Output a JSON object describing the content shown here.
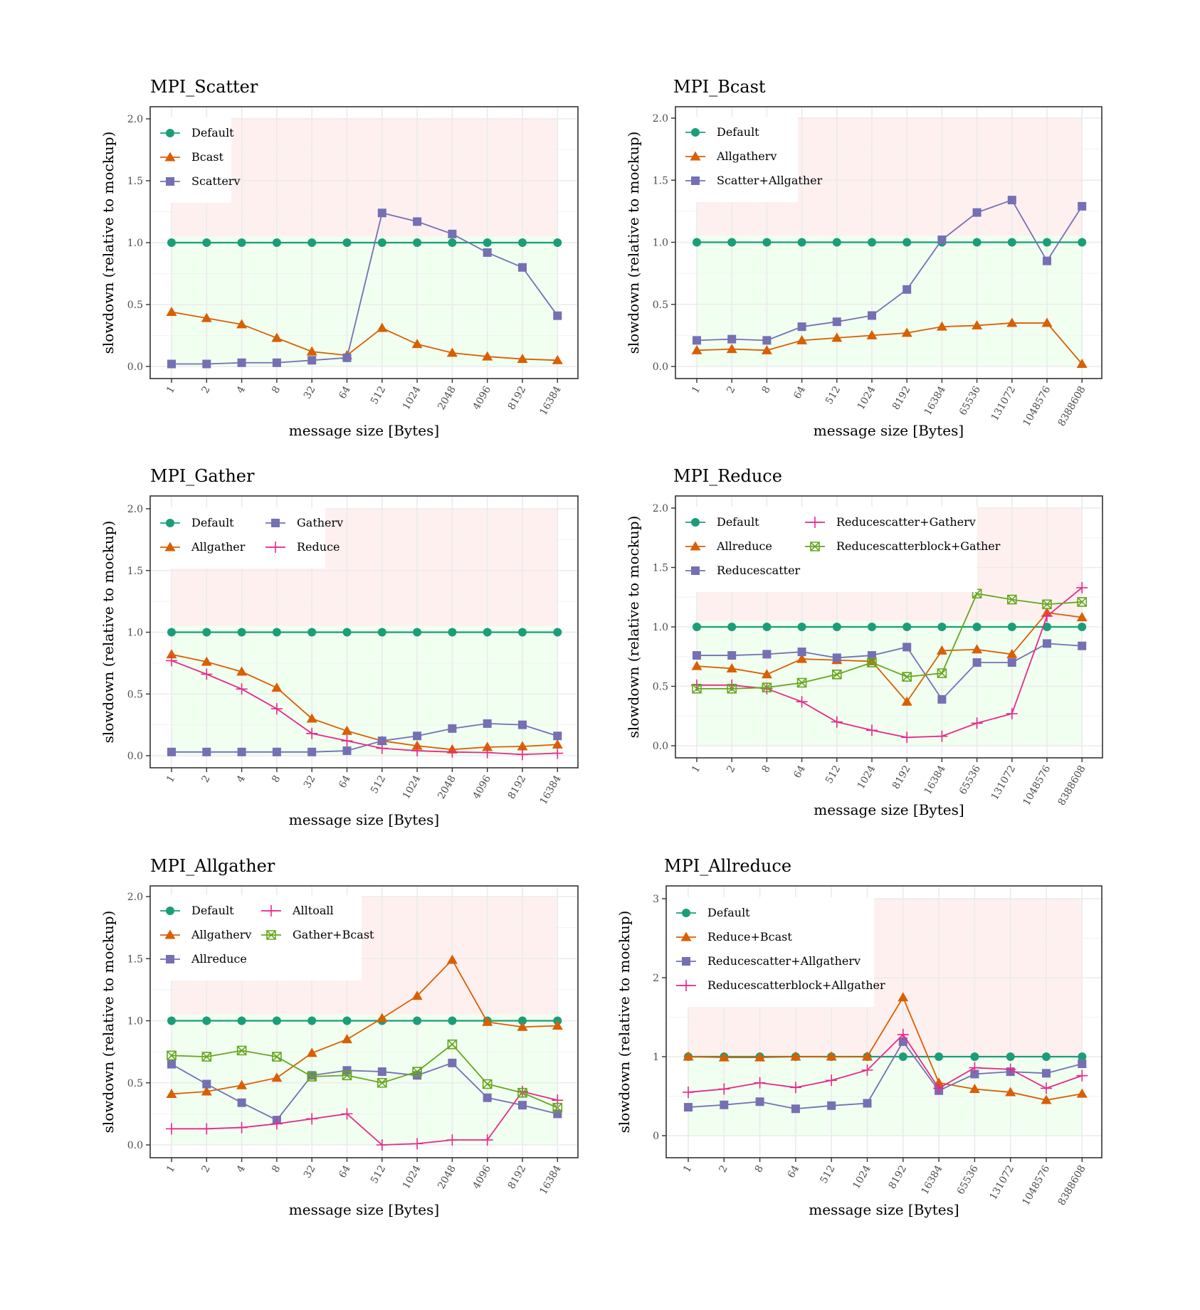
{
  "figure": {
    "background": "#ffffff",
    "region_colors": {
      "faster": "#f0fff0",
      "slower": "#fff0f0"
    },
    "series_colors": {
      "Default": "#1b9e77",
      "orange": "#d95f02",
      "purple": "#7570b3",
      "pink": "#e7298a",
      "green": "#66a61e"
    }
  },
  "chart_data": [
    {
      "id": "scatter",
      "type": "line",
      "title": "MPI_Scatter",
      "xlabel": "message size [Bytes]",
      "ylabel": "slowdown (relative to mockup)",
      "categories": [
        "1",
        "2",
        "4",
        "8",
        "32",
        "64",
        "512",
        "1024",
        "2048",
        "4096",
        "8192",
        "16384"
      ],
      "ylim": [
        0,
        2.0
      ],
      "yticks": [
        "0.0",
        "0.5",
        "1.0",
        "1.5",
        "2.0"
      ],
      "ytick_values": [
        0,
        0.5,
        1.0,
        1.5,
        2.0
      ],
      "grid": true,
      "shaded_regions": {
        "faster_below": 1.05,
        "slower_above": 1.05
      },
      "legend": {
        "position": "top-left",
        "columns": 1
      },
      "series": [
        {
          "name": "Default",
          "color": "#1b9e77",
          "marker": "circle",
          "values": [
            1,
            1,
            1,
            1,
            1,
            1,
            1,
            1,
            1,
            1,
            1,
            1
          ]
        },
        {
          "name": "Bcast",
          "color": "#d95f02",
          "marker": "triangle",
          "values": [
            0.44,
            0.39,
            0.34,
            0.23,
            0.12,
            0.09,
            0.31,
            0.18,
            0.11,
            0.08,
            0.06,
            0.05
          ]
        },
        {
          "name": "Scatterv",
          "color": "#7570b3",
          "marker": "square",
          "values": [
            0.02,
            0.02,
            0.03,
            0.03,
            0.05,
            0.07,
            1.24,
            1.17,
            1.07,
            0.92,
            0.8,
            0.41
          ]
        }
      ]
    },
    {
      "id": "bcast",
      "type": "line",
      "title": "MPI_Bcast",
      "xlabel": "message size [Bytes]",
      "ylabel": "slowdown (relative to mockup)",
      "categories": [
        "1",
        "2",
        "8",
        "64",
        "512",
        "1024",
        "8192",
        "16384",
        "65536",
        "131072",
        "1048576",
        "8388608"
      ],
      "ylim": [
        0,
        2.0
      ],
      "yticks": [
        "0.0",
        "0.5",
        "1.0",
        "1.5",
        "2.0"
      ],
      "ytick_values": [
        0,
        0.5,
        1.0,
        1.5,
        2.0
      ],
      "grid": true,
      "shaded_regions": {
        "faster_below": 1.05,
        "slower_above": 1.05
      },
      "legend": {
        "position": "top-left",
        "columns": 1
      },
      "series": [
        {
          "name": "Default",
          "color": "#1b9e77",
          "marker": "circle",
          "values": [
            1,
            1,
            1,
            1,
            1,
            1,
            1,
            1,
            1,
            1,
            1,
            1
          ]
        },
        {
          "name": "Allgatherv",
          "color": "#d95f02",
          "marker": "triangle",
          "values": [
            0.13,
            0.14,
            0.13,
            0.21,
            0.23,
            0.25,
            0.27,
            0.32,
            0.33,
            0.35,
            0.35,
            0.02
          ]
        },
        {
          "name": "Scatter+Allgather",
          "color": "#7570b3",
          "marker": "square",
          "values": [
            0.21,
            0.22,
            0.21,
            0.32,
            0.36,
            0.41,
            0.62,
            1.02,
            1.24,
            1.34,
            0.85,
            1.29
          ]
        }
      ]
    },
    {
      "id": "gather",
      "type": "line",
      "title": "MPI_Gather",
      "xlabel": "message size [Bytes]",
      "ylabel": "slowdown (relative to mockup)",
      "categories": [
        "1",
        "2",
        "4",
        "8",
        "32",
        "64",
        "512",
        "1024",
        "2048",
        "4096",
        "8192",
        "16384"
      ],
      "ylim": [
        0,
        2.0
      ],
      "yticks": [
        "0.0",
        "0.5",
        "1.0",
        "1.5",
        "2.0"
      ],
      "ytick_values": [
        0,
        0.5,
        1.0,
        1.5,
        2.0
      ],
      "grid": true,
      "shaded_regions": {
        "faster_below": 1.05,
        "slower_above": 1.05
      },
      "legend": {
        "position": "top-left",
        "columns": 2
      },
      "series": [
        {
          "name": "Default",
          "color": "#1b9e77",
          "marker": "circle",
          "values": [
            1,
            1,
            1,
            1,
            1,
            1,
            1,
            1,
            1,
            1,
            1,
            1
          ]
        },
        {
          "name": "Allgather",
          "color": "#d95f02",
          "marker": "triangle",
          "values": [
            0.82,
            0.76,
            0.68,
            0.55,
            0.3,
            0.2,
            0.12,
            0.08,
            0.05,
            0.07,
            0.075,
            0.09
          ]
        },
        {
          "name": "Gatherv",
          "color": "#7570b3",
          "marker": "square",
          "values": [
            0.03,
            0.03,
            0.03,
            0.03,
            0.03,
            0.04,
            0.12,
            0.16,
            0.22,
            0.26,
            0.25,
            0.16
          ]
        },
        {
          "name": "Reduce",
          "color": "#e7298a",
          "marker": "plus",
          "values": [
            0.77,
            0.66,
            0.54,
            0.38,
            0.18,
            0.12,
            0.06,
            0.04,
            0.03,
            0.025,
            0.01,
            0.02
          ]
        }
      ],
      "legend_order": [
        "Default",
        "Allgather",
        "Gatherv",
        "Reduce"
      ]
    },
    {
      "id": "reduce",
      "type": "line",
      "title": "MPI_Reduce",
      "xlabel": "message size [Bytes]",
      "ylabel": "slowdown (relative to mockup)",
      "categories": [
        "1",
        "2",
        "8",
        "64",
        "512",
        "1024",
        "8192",
        "16384",
        "65536",
        "131072",
        "1048576",
        "8388608"
      ],
      "ylim": [
        0,
        2.0
      ],
      "yticks": [
        "0.0",
        "0.5",
        "1.0",
        "1.5",
        "2.0"
      ],
      "ytick_values": [
        0,
        0.5,
        1.0,
        1.5,
        2.0
      ],
      "grid": true,
      "shaded_regions": {
        "faster_below": 1.05,
        "slower_above": 1.05
      },
      "legend": {
        "position": "top-left",
        "columns": 2
      },
      "series": [
        {
          "name": "Default",
          "color": "#1b9e77",
          "marker": "circle",
          "values": [
            1,
            1,
            1,
            1,
            1,
            1,
            1,
            1,
            1,
            1,
            1,
            1
          ]
        },
        {
          "name": "Allreduce",
          "color": "#d95f02",
          "marker": "triangle",
          "values": [
            0.67,
            0.65,
            0.6,
            0.73,
            0.72,
            0.71,
            0.37,
            0.8,
            0.81,
            0.77,
            1.12,
            1.08
          ]
        },
        {
          "name": "Reducescatter",
          "color": "#7570b3",
          "marker": "square",
          "values": [
            0.76,
            0.76,
            0.77,
            0.79,
            0.74,
            0.76,
            0.83,
            0.39,
            0.7,
            0.7,
            0.86,
            0.84
          ]
        },
        {
          "name": "Reducescatter+Gatherv",
          "color": "#e7298a",
          "marker": "plus",
          "values": [
            0.51,
            0.51,
            0.48,
            0.37,
            0.2,
            0.13,
            0.07,
            0.08,
            0.19,
            0.27,
            1.09,
            1.33
          ]
        },
        {
          "name": "Reducescatterblock+Gather",
          "color": "#66a61e",
          "marker": "boxx",
          "values": [
            0.48,
            0.48,
            0.49,
            0.53,
            0.6,
            0.7,
            0.58,
            0.61,
            1.28,
            1.23,
            1.19,
            1.21
          ]
        }
      ]
    },
    {
      "id": "allgather",
      "type": "line",
      "title": "MPI_Allgather",
      "xlabel": "message size [Bytes]",
      "ylabel": "slowdown (relative to mockup)",
      "categories": [
        "1",
        "2",
        "4",
        "8",
        "32",
        "64",
        "512",
        "1024",
        "2048",
        "4096",
        "8192",
        "16384"
      ],
      "ylim": [
        0,
        2.0
      ],
      "yticks": [
        "0.0",
        "0.5",
        "1.0",
        "1.5",
        "2.0"
      ],
      "ytick_values": [
        0,
        0.5,
        1.0,
        1.5,
        2.0
      ],
      "grid": true,
      "shaded_regions": {
        "faster_below": 1.05,
        "slower_above": 1.05
      },
      "legend": {
        "position": "top-left",
        "columns": 2
      },
      "series": [
        {
          "name": "Default",
          "color": "#1b9e77",
          "marker": "circle",
          "values": [
            1,
            1,
            1,
            1,
            1,
            1,
            1,
            1,
            1,
            1,
            1,
            1
          ]
        },
        {
          "name": "Allgatherv",
          "color": "#d95f02",
          "marker": "triangle",
          "values": [
            0.41,
            0.43,
            0.48,
            0.54,
            0.74,
            0.85,
            1.02,
            1.2,
            1.49,
            0.99,
            0.95,
            0.96
          ]
        },
        {
          "name": "Allreduce",
          "color": "#7570b3",
          "marker": "square",
          "values": [
            0.65,
            0.49,
            0.34,
            0.2,
            0.56,
            0.6,
            0.59,
            0.56,
            0.66,
            0.38,
            0.32,
            0.25
          ]
        },
        {
          "name": "Alltoall",
          "color": "#e7298a",
          "marker": "plus",
          "values": [
            0.13,
            0.13,
            0.14,
            0.17,
            0.21,
            0.25,
            0.0,
            0.01,
            0.04,
            0.04,
            0.43,
            0.36
          ]
        },
        {
          "name": "Gather+Bcast",
          "color": "#66a61e",
          "marker": "boxx",
          "values": [
            0.72,
            0.71,
            0.76,
            0.71,
            0.55,
            0.56,
            0.5,
            0.59,
            0.81,
            0.49,
            0.42,
            0.3
          ]
        }
      ]
    },
    {
      "id": "allreduce",
      "type": "line",
      "title": "MPI_Allreduce",
      "xlabel": "message size [Bytes]",
      "ylabel": "slowdown (relative to mockup)",
      "categories": [
        "1",
        "2",
        "8",
        "64",
        "512",
        "1024",
        "8192",
        "16384",
        "65536",
        "131072",
        "1048576",
        "8388608"
      ],
      "ylim": [
        0,
        3
      ],
      "yticks": [
        "0",
        "1",
        "2",
        "3"
      ],
      "ytick_values": [
        0,
        1,
        2,
        3
      ],
      "grid": true,
      "shaded_regions": {
        "faster_below": 1.0,
        "slower_above": 1.0
      },
      "legend": {
        "position": "top-left",
        "columns": 1
      },
      "series": [
        {
          "name": "Default",
          "color": "#1b9e77",
          "marker": "circle",
          "values": [
            1,
            1,
            1,
            1,
            1,
            1,
            1,
            1,
            1,
            1,
            1,
            1
          ]
        },
        {
          "name": "Reduce+Bcast",
          "color": "#d95f02",
          "marker": "triangle",
          "values": [
            1.0,
            0.99,
            0.99,
            1.0,
            1.0,
            1.0,
            1.75,
            0.67,
            0.59,
            0.55,
            0.45,
            0.53
          ]
        },
        {
          "name": "Reducescatter+Allgatherv",
          "color": "#7570b3",
          "marker": "square",
          "values": [
            0.36,
            0.39,
            0.43,
            0.34,
            0.38,
            0.41,
            1.19,
            0.57,
            0.78,
            0.81,
            0.79,
            0.91
          ]
        },
        {
          "name": "Reducescatterblock+Allgather",
          "color": "#e7298a",
          "marker": "plus",
          "values": [
            0.55,
            0.59,
            0.67,
            0.61,
            0.7,
            0.83,
            1.28,
            0.6,
            0.86,
            0.84,
            0.6,
            0.76
          ]
        }
      ]
    }
  ]
}
